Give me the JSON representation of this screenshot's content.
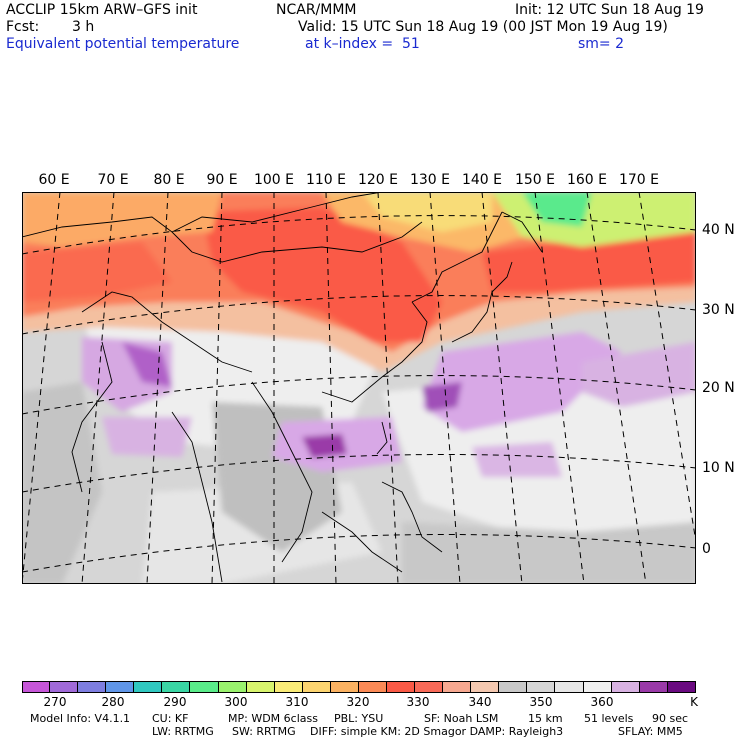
{
  "header": {
    "model_title": "ACCLIP 15km ARW–GFS init",
    "forecast_label": "Fcst:",
    "forecast_value": "3 h",
    "field_name": "Equivalent potential temperature",
    "center": "NCAR/MMM",
    "init": "Init: 12 UTC Sun 18 Aug 19",
    "valid": "Valid: 15 UTC Sun 18 Aug 19 (00 JST Mon 19 Aug 19)",
    "level": "at k–index =  51",
    "smoothing": "sm= 2"
  },
  "map": {
    "longitude_labels": [
      "60 E",
      "70 E",
      "80 E",
      "90 E",
      "100 E",
      "110 E",
      "120 E",
      "130 E",
      "140 E",
      "150 E",
      "160 E",
      "170 E"
    ],
    "latitude_labels": [
      "40 N",
      "30 N",
      "20 N",
      "10 N",
      "0"
    ],
    "palette": {
      "warm_high": "#ff6040",
      "warm": "#ff7a58",
      "orange": "#ffaa66",
      "peach": "#f6c8a8",
      "grey": "#c7c7c7",
      "light_grey": "#dcdcdc",
      "near_white": "#eeeeee",
      "lavender": "#d8a8e6",
      "purple": "#b060c8",
      "dark_purple": "#8a2aa0",
      "yellow": "#ffe27a",
      "light_green": "#c8f070",
      "green": "#50e890"
    }
  },
  "colorbar": {
    "colors": [
      "#c656d8",
      "#a06ad8",
      "#7e7ee0",
      "#6096e8",
      "#30c8c0",
      "#3ad6a4",
      "#5aec8a",
      "#9af26e",
      "#d8f46e",
      "#faec78",
      "#fcd470",
      "#fbb262",
      "#fb8a56",
      "#fa5a46",
      "#f86a58",
      "#f6a890",
      "#f4c8b0",
      "#c8c8c8",
      "#d6d6d6",
      "#e6e6e6",
      "#f0f0f0",
      "#d8b2e2",
      "#9a3aa8",
      "#6a0a80"
    ],
    "tick_labels": [
      "270",
      "280",
      "290",
      "300",
      "310",
      "320",
      "330",
      "340",
      "350",
      "360"
    ],
    "unit": "K"
  },
  "footer": {
    "model_info": "Model Info: V4.1.1",
    "cu": "CU: KF",
    "mp": "MP: WDM 6class",
    "pbl": "PBL: YSU",
    "sf": "SF: Noah LSM",
    "resolution": "15 km",
    "levels": "51 levels",
    "timestep": "90 sec",
    "lw": "LW: RRTMG",
    "sw": "SW: RRTMG",
    "diff": "DIFF: simple KM: 2D Smagor DAMP: Rayleigh3",
    "sflay": "SFLAY: MM5"
  }
}
